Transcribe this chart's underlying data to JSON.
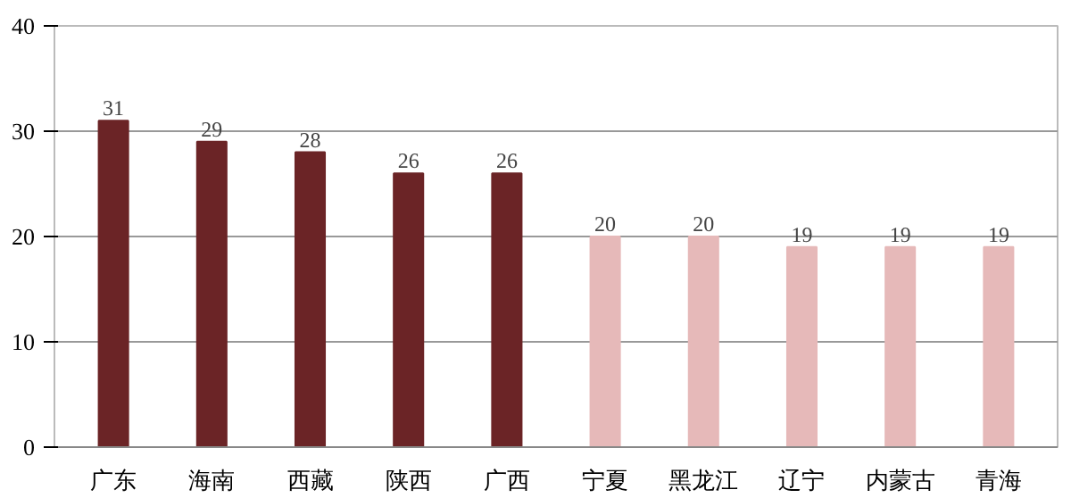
{
  "chart_data": {
    "type": "bar",
    "categories": [
      "广东",
      "海南",
      "西藏",
      "陕西",
      "广西",
      "宁夏",
      "黑龙江",
      "辽宁",
      "内蒙古",
      "青海"
    ],
    "values": [
      31,
      29,
      28,
      26,
      26,
      20,
      20,
      19,
      19,
      19
    ],
    "colors": [
      "#6b2426",
      "#6b2426",
      "#6b2426",
      "#6b2426",
      "#6b2426",
      "#e6b9b9",
      "#e6b9b9",
      "#e6b9b9",
      "#e6b9b9",
      "#e6b9b9"
    ],
    "ylim": [
      0,
      40
    ],
    "yticks": [
      0,
      10,
      20,
      30,
      40
    ],
    "grid": "y",
    "data_labels": true
  }
}
